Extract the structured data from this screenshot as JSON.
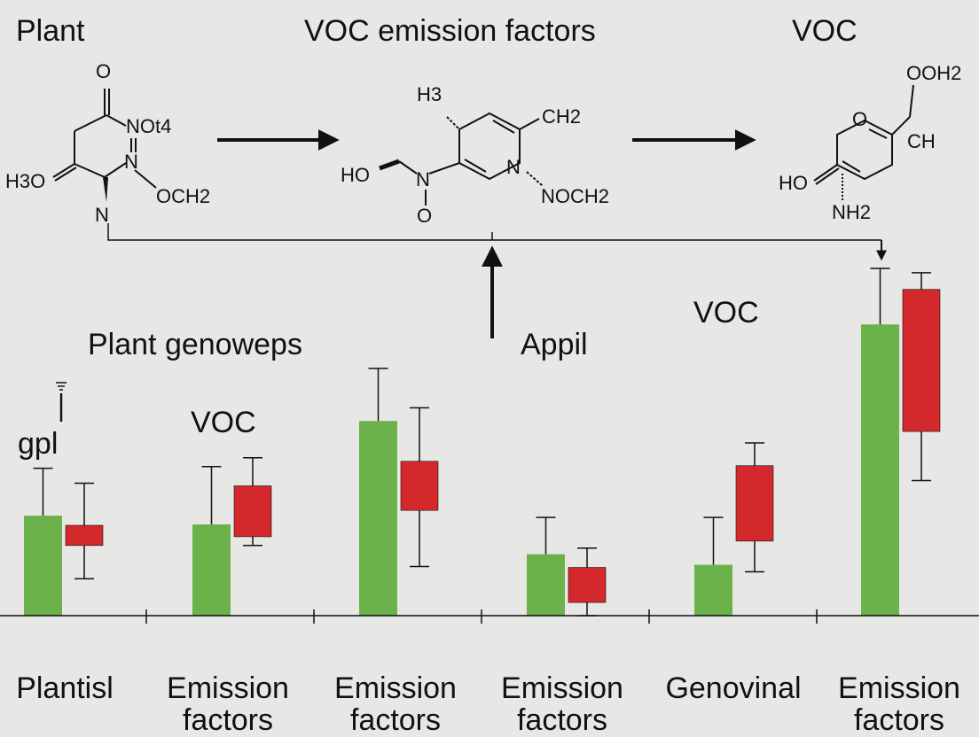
{
  "header": {
    "left_title": "Plant",
    "center_title": "VOC emission factors",
    "right_title": "VOC"
  },
  "molecules": {
    "m1": [
      "O",
      "NOt4",
      "N",
      "H3O",
      "OCH2",
      "N"
    ],
    "m2": [
      "H3",
      "CH2",
      "HO",
      "N",
      "N",
      "NOCH2",
      "O"
    ],
    "m3": [
      "OOH2",
      "O",
      "CH",
      "HO",
      "NH2"
    ]
  },
  "annotations": {
    "plant_genoweps": "Plant genoweps",
    "appil": "Appil",
    "voc_right": "VOC",
    "voc_left": "VOC",
    "gpl": "gpl"
  },
  "colors": {
    "green": "#6ab249",
    "red": "#d3282c",
    "background": "#e7e7e5",
    "ink": "#111111"
  },
  "chart_data": {
    "type": "bar",
    "categories": [
      [
        "Plantisl",
        ""
      ],
      [
        "Emission",
        "factors"
      ],
      [
        "Emission",
        "factors"
      ],
      [
        "Emission",
        "factors"
      ],
      [
        "Genovinal",
        ""
      ],
      [
        "Emission",
        "factors"
      ]
    ],
    "ylim": [
      0,
      400
    ],
    "grid": false,
    "series": [
      {
        "type": "bar",
        "color": "#6ab249",
        "values": [
          114,
          104,
          222,
          70,
          58,
          332
        ],
        "whisker_high": [
          168,
          170,
          282,
          112,
          112,
          396
        ]
      },
      {
        "type": "box",
        "color": "#d3282c",
        "low": [
          80,
          90,
          120,
          15,
          85,
          210
        ],
        "high": [
          103,
          148,
          176,
          55,
          171,
          372
        ],
        "whisker_low": [
          42,
          80,
          56,
          0,
          50,
          154
        ],
        "whisker_high": [
          151,
          180,
          237,
          77,
          197,
          391
        ]
      }
    ]
  }
}
